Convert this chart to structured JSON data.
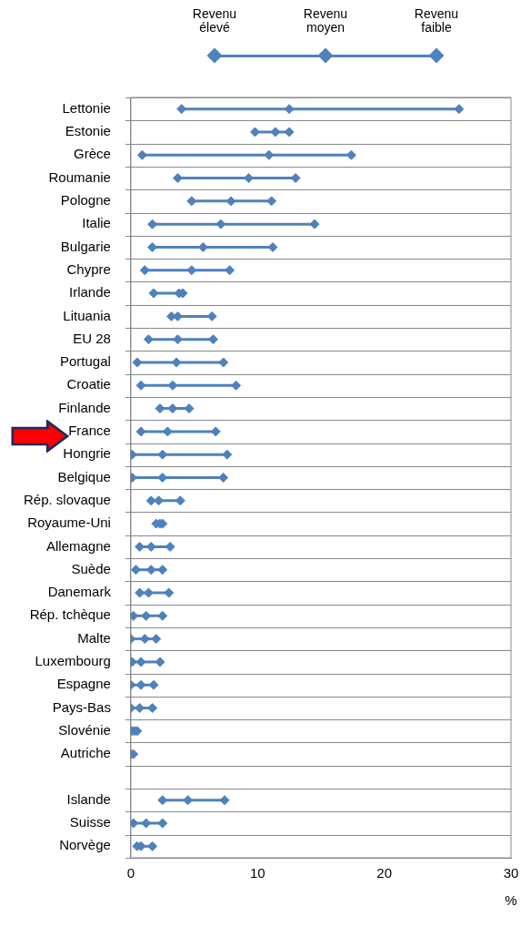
{
  "chart_data": {
    "type": "scatter",
    "orientation": "horizontal",
    "xlabel": "%",
    "legend": "top",
    "grid": "y",
    "marker": "diamond",
    "categories": [
      "Lettonie",
      "Estonie",
      "Grèce",
      "Roumanie",
      "Pologne",
      "Italie",
      "Bulgarie",
      "Chypre",
      "Irlande",
      "Lituania",
      "EU 28",
      "Portugal",
      "Croatie",
      "Finlande",
      "France",
      "Hongrie",
      "Belgique",
      "Rép. slovaque",
      "Royaume-Uni",
      "Allemagne",
      "Suède",
      "Danemark",
      "Rép. tchèque",
      "Malte",
      "Luxembourg",
      "Espagne",
      "Pays-Bas",
      "Slovénie",
      "Autriche",
      null,
      "Islande",
      "Suisse",
      "Norvège"
    ],
    "xlim": [
      0,
      30
    ],
    "xticks": [
      0,
      10,
      20,
      30
    ],
    "series": [
      {
        "name": "Revenu élevé",
        "color": "#4f81bd",
        "values": [
          4.0,
          9.8,
          0.9,
          3.7,
          4.8,
          1.7,
          1.7,
          1.1,
          1.8,
          3.2,
          1.4,
          0.5,
          0.8,
          2.3,
          0.8,
          0.1,
          0.1,
          1.6,
          2.0,
          0.7,
          0.4,
          0.7,
          0.2,
          0.0,
          0.1,
          0.0,
          0.0,
          0.1,
          null,
          null,
          2.5,
          0.2,
          0.5
        ]
      },
      {
        "name": "Revenu moyen",
        "color": "#4f81bd",
        "values": [
          12.5,
          11.4,
          10.9,
          9.3,
          7.9,
          7.1,
          5.7,
          4.8,
          3.8,
          3.7,
          3.7,
          3.6,
          3.3,
          3.3,
          2.9,
          2.5,
          2.5,
          2.2,
          2.3,
          1.6,
          1.6,
          1.4,
          1.2,
          1.1,
          0.8,
          0.8,
          0.7,
          0.3,
          0.0,
          null,
          4.5,
          1.2,
          0.8
        ]
      },
      {
        "name": "Revenu faible",
        "color": "#4f81bd",
        "values": [
          25.9,
          12.5,
          17.4,
          13.0,
          11.1,
          14.5,
          11.2,
          7.8,
          4.1,
          6.4,
          6.5,
          7.3,
          8.3,
          4.6,
          6.7,
          7.6,
          7.3,
          3.9,
          2.5,
          3.1,
          2.5,
          3.0,
          2.5,
          2.0,
          2.3,
          1.8,
          1.7,
          0.5,
          0.2,
          null,
          7.4,
          2.5,
          1.7
        ]
      }
    ]
  }
}
